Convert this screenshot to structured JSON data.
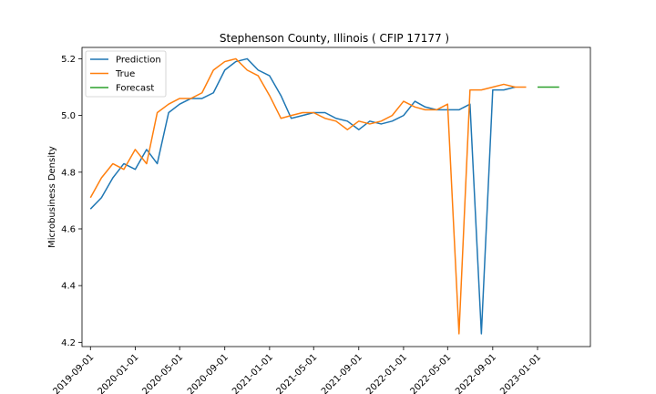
{
  "chart_data": {
    "type": "line",
    "title": "Stephenson County, Illinois ( CFIP 17177 )",
    "xlabel": "",
    "ylabel": "Microbusiness Density",
    "x_range": [
      "2019-08-09",
      "2023-05-25"
    ],
    "ylim": [
      4.185,
      5.24
    ],
    "y_ticks": [
      4.2,
      4.4,
      4.6,
      4.8,
      5.0,
      5.2
    ],
    "y_tick_labels": [
      "4.2",
      "4.4",
      "4.6",
      "4.8",
      "5.0",
      "5.2"
    ],
    "x_ticks": [
      "2019-09-01",
      "2020-01-01",
      "2020-05-01",
      "2020-09-01",
      "2021-01-01",
      "2021-05-01",
      "2021-09-01",
      "2022-01-01",
      "2022-05-01",
      "2022-09-01",
      "2023-01-01"
    ],
    "x_tick_labels": [
      "2019-09-01",
      "2020-01-01",
      "2020-05-01",
      "2020-09-01",
      "2021-01-01",
      "2021-05-01",
      "2021-09-01",
      "2022-01-01",
      "2022-05-01",
      "2022-09-01",
      "2023-01-01"
    ],
    "grid": false,
    "legend_position": "top-left",
    "series": [
      {
        "name": "Prediction",
        "color": "#1f77b4",
        "x": [
          "2019-09-01",
          "2019-10-01",
          "2019-11-01",
          "2019-12-01",
          "2020-01-01",
          "2020-02-01",
          "2020-03-01",
          "2020-04-01",
          "2020-05-01",
          "2020-06-01",
          "2020-07-01",
          "2020-08-01",
          "2020-09-01",
          "2020-10-01",
          "2020-11-01",
          "2020-12-01",
          "2021-01-01",
          "2021-02-01",
          "2021-03-01",
          "2021-04-01",
          "2021-05-01",
          "2021-06-01",
          "2021-07-01",
          "2021-08-01",
          "2021-09-01",
          "2021-10-01",
          "2021-11-01",
          "2021-12-01",
          "2022-01-01",
          "2022-02-01",
          "2022-03-01",
          "2022-04-01",
          "2022-05-01",
          "2022-06-01",
          "2022-07-01",
          "2022-08-01",
          "2022-09-01",
          "2022-10-01",
          "2022-11-01"
        ],
        "values": [
          4.67,
          4.71,
          4.78,
          4.83,
          4.81,
          4.88,
          4.83,
          5.01,
          5.04,
          5.06,
          5.06,
          5.08,
          5.16,
          5.19,
          5.2,
          5.16,
          5.14,
          5.07,
          4.99,
          5.0,
          5.01,
          5.01,
          4.99,
          4.98,
          4.95,
          4.98,
          4.97,
          4.98,
          5.0,
          5.05,
          5.03,
          5.02,
          5.02,
          5.02,
          5.04,
          4.23,
          5.09,
          5.09,
          5.1
        ]
      },
      {
        "name": "True",
        "color": "#ff7f0e",
        "x": [
          "2019-09-01",
          "2019-10-01",
          "2019-11-01",
          "2019-12-01",
          "2020-01-01",
          "2020-02-01",
          "2020-03-01",
          "2020-04-01",
          "2020-05-01",
          "2020-06-01",
          "2020-07-01",
          "2020-08-01",
          "2020-09-01",
          "2020-10-01",
          "2020-11-01",
          "2020-12-01",
          "2021-01-01",
          "2021-02-01",
          "2021-03-01",
          "2021-04-01",
          "2021-05-01",
          "2021-06-01",
          "2021-07-01",
          "2021-08-01",
          "2021-09-01",
          "2021-10-01",
          "2021-11-01",
          "2021-12-01",
          "2022-01-01",
          "2022-02-01",
          "2022-03-01",
          "2022-04-01",
          "2022-05-01",
          "2022-06-01",
          "2022-07-01",
          "2022-08-01",
          "2022-09-01",
          "2022-10-01",
          "2022-11-01",
          "2022-12-01"
        ],
        "values": [
          4.71,
          4.78,
          4.83,
          4.81,
          4.88,
          4.83,
          5.01,
          5.04,
          5.06,
          5.06,
          5.08,
          5.16,
          5.19,
          5.2,
          5.16,
          5.14,
          5.07,
          4.99,
          5.0,
          5.01,
          5.01,
          4.99,
          4.98,
          4.95,
          4.98,
          4.97,
          4.98,
          5.0,
          5.05,
          5.03,
          5.02,
          5.02,
          5.04,
          4.23,
          5.09,
          5.09,
          5.1,
          5.11,
          5.1,
          5.1
        ]
      },
      {
        "name": "Forecast",
        "color": "#2ca02c",
        "x": [
          "2023-01-01",
          "2023-02-01",
          "2023-03-01"
        ],
        "values": [
          5.1,
          5.1,
          5.1
        ]
      }
    ]
  }
}
